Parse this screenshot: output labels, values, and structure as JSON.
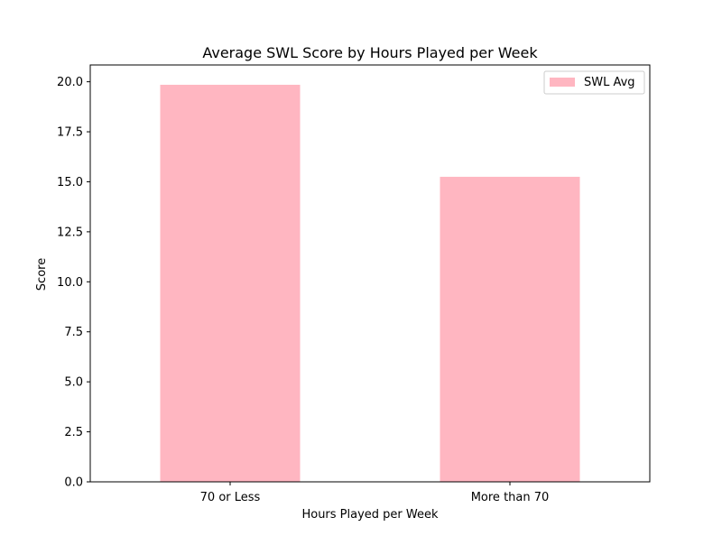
{
  "chart_data": {
    "type": "bar",
    "title": "Average SWL Score by Hours Played per Week",
    "xlabel": "Hours Played per Week",
    "ylabel": "Score",
    "categories": [
      "70 or Less",
      "More than 70"
    ],
    "series": [
      {
        "name": "SWL Avg",
        "values": [
          19.85,
          15.25
        ],
        "color": "#ffb6c1"
      }
    ],
    "ylim": [
      0,
      20.84
    ],
    "yticks": [
      0.0,
      2.5,
      5.0,
      7.5,
      10.0,
      12.5,
      15.0,
      17.5,
      20.0
    ],
    "ytick_labels": [
      "0.0",
      "2.5",
      "5.0",
      "7.5",
      "10.0",
      "12.5",
      "15.0",
      "17.5",
      "20.0"
    ],
    "grid": false,
    "legend_position": "top-right"
  }
}
